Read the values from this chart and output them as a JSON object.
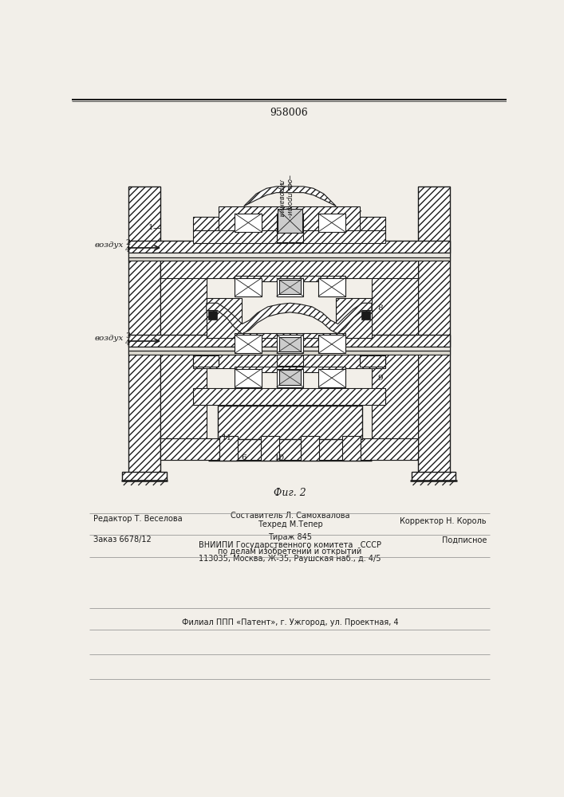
{
  "patent_number": "958006",
  "fig_label": "Фиг. 2",
  "bg_color": "#f2efe9",
  "lc": "#1a1a1a",
  "vozdukh": "воздух",
  "editor_line": "Редактор Т. Веселова",
  "sostavitel_line": "Составитель Л. Самохвалова",
  "tekhred_line": "Техред М.Тепер",
  "korrektor_line": "Корректор Н. Король",
  "zakaz_line": "Заказ 6678/12",
  "tirazh_line": "Тираж 845",
  "podpisnoe_line": "Подписное",
  "vniip_line1": "ВНИИПИ Государственного комитета   СССР",
  "vniip_line2": "по делам изобретений и открытий",
  "vniip_line3": "113035, Москва, Ж-35, Раушская наб., д. 4/5",
  "filial_line": "Филиал ППП «Патент», г. Ужгород, ул. Проектная, 4"
}
